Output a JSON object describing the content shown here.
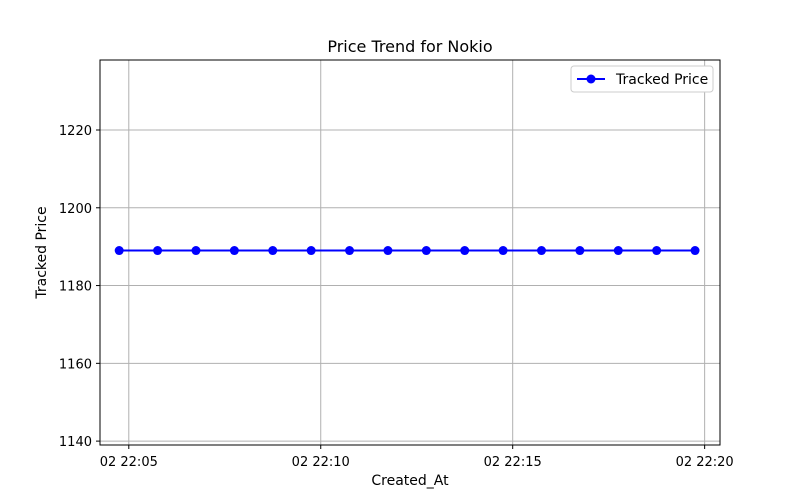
{
  "chart_data": {
    "type": "line",
    "title": "Price Trend for Nokio",
    "xlabel": "Created_At",
    "ylabel": "Tracked Price",
    "x_tick_labels": [
      "02 22:05",
      "02 22:10",
      "02 22:15",
      "02 22:20"
    ],
    "x_tick_values_min": [
      5,
      10,
      15,
      20
    ],
    "y_ticks": [
      1140,
      1160,
      1180,
      1200,
      1220
    ],
    "xlim_min": [
      4.25,
      20.4
    ],
    "ylim": [
      1139,
      1238
    ],
    "grid": true,
    "legend": {
      "position": "top-right"
    },
    "series": [
      {
        "name": "Tracked Price",
        "color": "#0000ff",
        "marker": "circle",
        "x_min": [
          4.75,
          5.75,
          6.75,
          7.75,
          8.75,
          9.75,
          10.75,
          11.75,
          12.75,
          13.75,
          14.75,
          15.75,
          16.75,
          17.75,
          18.75,
          19.75
        ],
        "values": [
          1189,
          1189,
          1189,
          1189,
          1189,
          1189,
          1189,
          1189,
          1189,
          1189,
          1189,
          1189,
          1189,
          1189,
          1189,
          1189
        ]
      }
    ]
  }
}
